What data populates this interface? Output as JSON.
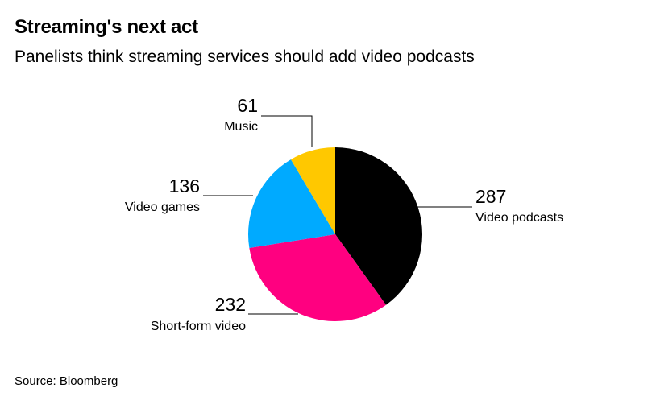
{
  "title": "Streaming's next act",
  "subtitle": "Panelists think streaming services should add video podcasts",
  "source": "Source: Bloomberg",
  "chart_data": {
    "type": "pie",
    "title": "Streaming's next act",
    "subtitle": "Panelists think streaming services should add video podcasts",
    "slices": [
      {
        "label": "Video podcasts",
        "value": 287,
        "color": "#000000"
      },
      {
        "label": "Short-form video",
        "value": 232,
        "color": "#ff0080"
      },
      {
        "label": "Video games",
        "value": 136,
        "color": "#00aaff"
      },
      {
        "label": "Music",
        "value": 61,
        "color": "#ffc800"
      }
    ],
    "start_angle": "12 o'clock",
    "direction": "clockwise"
  }
}
